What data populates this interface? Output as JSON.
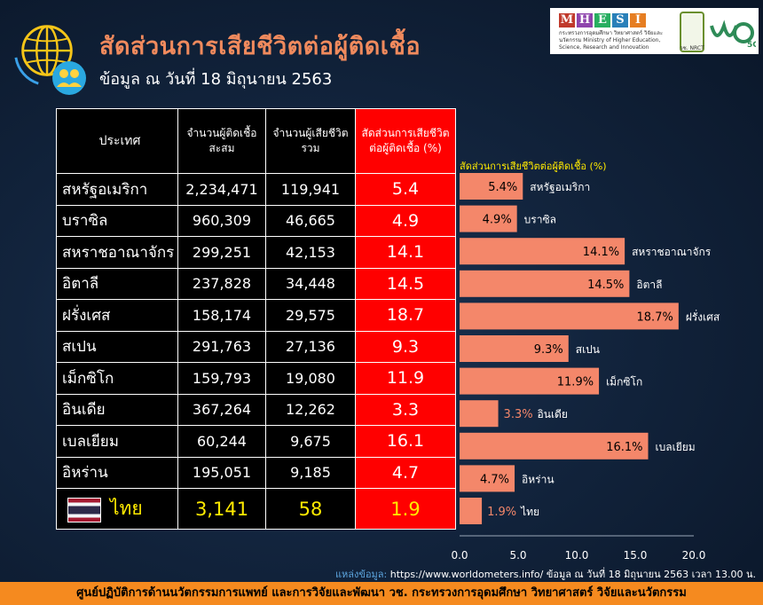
{
  "header": {
    "title": "สัดส่วนการเสียชีวิตต่อผู้ติดเชื้อ",
    "subtitle": "ข้อมูล ณ วันที่ 18 มิถุนายน 2563"
  },
  "logos": {
    "mhesi_letters": [
      "M",
      "H",
      "E",
      "S",
      "I"
    ],
    "mhesi_colors": [
      "#c0392b",
      "#8e44ad",
      "#27ae60",
      "#2980b9",
      "#e67e22"
    ],
    "mhesi_sub": "กระทรวงการอุดมศึกษา วิทยาศาสตร์ วิจัยและนวัตกรรม Ministry of Higher Education, Science, Research and Innovation",
    "nrct": "วช. NRCT",
    "v5g": "5G"
  },
  "table": {
    "headers": [
      "ประเทศ",
      "จำนวนผู้ติดเชื้อ สะสม",
      "จำนวนผู้เสียชีวิต รวม",
      "สัดส่วนการเสียชีวิต ต่อผู้ติดเชื้อ (%)"
    ],
    "rows": [
      {
        "country": "สหรัฐอเมริกา",
        "cases": "2,234,471",
        "deaths": "119,941",
        "ratio": "5.4"
      },
      {
        "country": "บราซิล",
        "cases": "960,309",
        "deaths": "46,665",
        "ratio": "4.9"
      },
      {
        "country": "สหราชอาณาจักร",
        "cases": "299,251",
        "deaths": "42,153",
        "ratio": "14.1"
      },
      {
        "country": "อิตาลี",
        "cases": "237,828",
        "deaths": "34,448",
        "ratio": "14.5"
      },
      {
        "country": "ฝรั่งเศส",
        "cases": "158,174",
        "deaths": "29,575",
        "ratio": "18.7"
      },
      {
        "country": "สเปน",
        "cases": "291,763",
        "deaths": "27,136",
        "ratio": "9.3"
      },
      {
        "country": "เม็กซิโก",
        "cases": "159,793",
        "deaths": "19,080",
        "ratio": "11.9"
      },
      {
        "country": "อินเดีย",
        "cases": "367,264",
        "deaths": "12,262",
        "ratio": "3.3"
      },
      {
        "country": "เบลเยียม",
        "cases": "60,244",
        "deaths": "9,675",
        "ratio": "16.1"
      },
      {
        "country": "อิหร่าน",
        "cases": "195,051",
        "deaths": "9,185",
        "ratio": "4.7"
      }
    ],
    "thailand": {
      "country": "ไทย",
      "cases": "3,141",
      "deaths": "58",
      "ratio": "1.9"
    }
  },
  "chart_data": {
    "type": "bar",
    "orientation": "horizontal",
    "title": "สัดส่วนการเสียชีวิตต่อผู้ติดเชื้อ (%)",
    "categories": [
      "สหรัฐอเมริกา",
      "บราซิล",
      "สหราชอาณาจักร",
      "อิตาลี",
      "ฝรั่งเศส",
      "สเปน",
      "เม็กซิโก",
      "อินเดีย",
      "เบลเยียม",
      "อิหร่าน",
      "ไทย"
    ],
    "values": [
      5.4,
      4.9,
      14.1,
      14.5,
      18.7,
      9.3,
      11.9,
      3.3,
      16.1,
      4.7,
      1.9
    ],
    "data_labels": [
      "5.4%",
      "4.9%",
      "14.1%",
      "14.5%",
      "18.7%",
      "9.3%",
      "11.9%",
      "3.3%",
      "16.1%",
      "4.7%",
      "1.9%"
    ],
    "xlim": [
      0,
      20
    ],
    "xticks": [
      "0.0",
      "5.0",
      "10.0",
      "15.0",
      "20.0"
    ],
    "bar_color": "#f4876a",
    "label_colors": [
      "#000000",
      "#000000",
      "#000000",
      "#000000",
      "#000000",
      "#000000",
      "#000000",
      "#f4876a",
      "#000000",
      "#000000",
      "#f4876a"
    ],
    "grid": false
  },
  "source": {
    "label": "แหล่งข้อมูล:",
    "text": "https://www.worldometers.info/ ข้อมูล ณ วันที่ 18 มิถุนายน 2563 เวลา 13.00 น."
  },
  "footer": {
    "text": "ศูนย์ปฏิบัติการด้านนวัตกรรมการแพทย์ และการวิจัยและพัฒนา วช. กระทรวงการอุดมศึกษา วิทยาศาสตร์ วิจัยและนวัตกรรม"
  },
  "colors": {
    "background": "#0d1b2e",
    "title": "#f08a5d",
    "ratio_column": "#ff0000",
    "thailand_highlight": "#ffea00",
    "footer": "#f58a1f"
  }
}
